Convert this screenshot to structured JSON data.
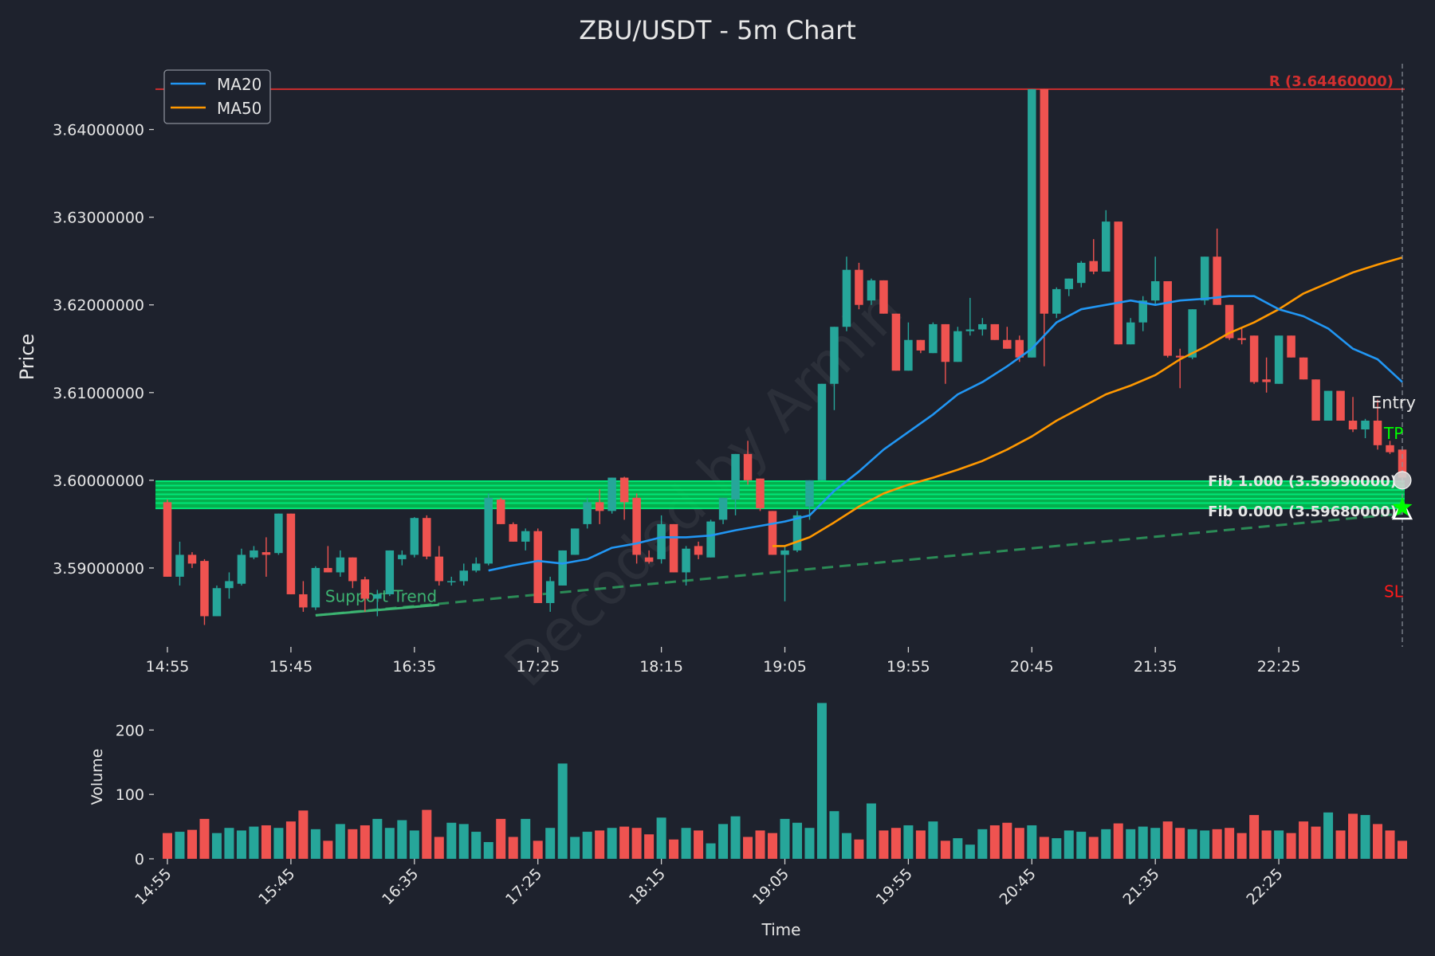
{
  "chart_data": {
    "type": "candlestick",
    "title": "ZBU/USDT - 5m Chart",
    "price_axis": {
      "label": "Price",
      "ylim": [
        3.581,
        3.6475
      ],
      "ticks": [
        3.59,
        3.6,
        3.61,
        3.62,
        3.63,
        3.64
      ],
      "tick_labels": [
        "3.59000000",
        "3.60000000",
        "3.61000000",
        "3.62000000",
        "3.63000000",
        "3.64000000"
      ]
    },
    "volume_axis": {
      "label": "Volume",
      "ylim": [
        0,
        245
      ],
      "ticks": [
        0,
        100,
        200
      ],
      "tick_labels": [
        "0",
        "100",
        "200"
      ]
    },
    "time_axis": {
      "label": "Time",
      "tick_labels": [
        "14:55",
        "15:45",
        "16:35",
        "17:25",
        "18:15",
        "19:05",
        "19:55",
        "20:45",
        "21:35",
        "22:25"
      ],
      "tick_index": [
        0,
        10,
        20,
        30,
        40,
        50,
        60,
        70,
        80,
        90
      ]
    },
    "legend": {
      "placement": "top-left",
      "entries": [
        {
          "name": "MA20",
          "color": "#2196f3"
        },
        {
          "name": "MA50",
          "color": "#ff9800"
        }
      ]
    },
    "colors": {
      "up": "#26a69a",
      "down": "#ef5350",
      "resistance": "#d32f2f",
      "fib": "#00c853",
      "support": "#2e9e5e",
      "entry": "#e6e6e6",
      "tp": "#00ff00",
      "sl": "#ff1a1a"
    },
    "candles": [
      {
        "t": "14:55",
        "o": 3.5975,
        "h": 3.5978,
        "l": 3.589,
        "c": 3.589,
        "v": 40
      },
      {
        "t": "15:00",
        "o": 3.589,
        "h": 3.593,
        "l": 3.588,
        "c": 3.5915,
        "v": 42
      },
      {
        "t": "15:05",
        "o": 3.5915,
        "h": 3.5918,
        "l": 3.59,
        "c": 3.5905,
        "v": 45
      },
      {
        "t": "15:10",
        "o": 3.5908,
        "h": 3.591,
        "l": 3.5835,
        "c": 3.5845,
        "v": 62
      },
      {
        "t": "15:15",
        "o": 3.5845,
        "h": 3.588,
        "l": 3.5845,
        "c": 3.5877,
        "v": 40
      },
      {
        "t": "15:20",
        "o": 3.5877,
        "h": 3.5895,
        "l": 3.5865,
        "c": 3.5885,
        "v": 48
      },
      {
        "t": "15:25",
        "o": 3.5882,
        "h": 3.5922,
        "l": 3.588,
        "c": 3.5915,
        "v": 44
      },
      {
        "t": "15:30",
        "o": 3.5912,
        "h": 3.5925,
        "l": 3.591,
        "c": 3.592,
        "v": 50
      },
      {
        "t": "15:35",
        "o": 3.5918,
        "h": 3.5935,
        "l": 3.589,
        "c": 3.5915,
        "v": 52
      },
      {
        "t": "15:40",
        "o": 3.5917,
        "h": 3.5962,
        "l": 3.5915,
        "c": 3.5962,
        "v": 48
      },
      {
        "t": "15:45",
        "o": 3.5962,
        "h": 3.5962,
        "l": 3.587,
        "c": 3.587,
        "v": 58
      },
      {
        "t": "15:50",
        "o": 3.587,
        "h": 3.5885,
        "l": 3.585,
        "c": 3.5855,
        "v": 75
      },
      {
        "t": "15:55",
        "o": 3.5855,
        "h": 3.5902,
        "l": 3.5852,
        "c": 3.59,
        "v": 46
      },
      {
        "t": "16:00",
        "o": 3.59,
        "h": 3.5925,
        "l": 3.5895,
        "c": 3.5895,
        "v": 28
      },
      {
        "t": "16:05",
        "o": 3.5895,
        "h": 3.592,
        "l": 3.589,
        "c": 3.5912,
        "v": 54
      },
      {
        "t": "16:10",
        "o": 3.5912,
        "h": 3.5912,
        "l": 3.5877,
        "c": 3.5885,
        "v": 46
      },
      {
        "t": "16:15",
        "o": 3.5887,
        "h": 3.589,
        "l": 3.585,
        "c": 3.5865,
        "v": 52
      },
      {
        "t": "16:20",
        "o": 3.5865,
        "h": 3.5875,
        "l": 3.5845,
        "c": 3.587,
        "v": 62
      },
      {
        "t": "16:25",
        "o": 3.587,
        "h": 3.592,
        "l": 3.5868,
        "c": 3.592,
        "v": 48
      },
      {
        "t": "16:30",
        "o": 3.591,
        "h": 3.592,
        "l": 3.5903,
        "c": 3.5915,
        "v": 60
      },
      {
        "t": "16:35",
        "o": 3.5915,
        "h": 3.5958,
        "l": 3.5912,
        "c": 3.5957,
        "v": 44
      },
      {
        "t": "16:40",
        "o": 3.5957,
        "h": 3.596,
        "l": 3.591,
        "c": 3.5913,
        "v": 76
      },
      {
        "t": "16:45",
        "o": 3.5913,
        "h": 3.5925,
        "l": 3.588,
        "c": 3.5885,
        "v": 34
      },
      {
        "t": "16:50",
        "o": 3.5885,
        "h": 3.589,
        "l": 3.588,
        "c": 3.5885,
        "v": 56
      },
      {
        "t": "16:55",
        "o": 3.5885,
        "h": 3.5905,
        "l": 3.588,
        "c": 3.5897,
        "v": 54
      },
      {
        "t": "17:00",
        "o": 3.5897,
        "h": 3.5912,
        "l": 3.5895,
        "c": 3.5905,
        "v": 42
      },
      {
        "t": "17:05",
        "o": 3.5905,
        "h": 3.5985,
        "l": 3.5903,
        "c": 3.598,
        "v": 26
      },
      {
        "t": "17:10",
        "o": 3.5978,
        "h": 3.598,
        "l": 3.595,
        "c": 3.595,
        "v": 62
      },
      {
        "t": "17:15",
        "o": 3.595,
        "h": 3.5952,
        "l": 3.593,
        "c": 3.593,
        "v": 34
      },
      {
        "t": "17:20",
        "o": 3.593,
        "h": 3.5945,
        "l": 3.592,
        "c": 3.5942,
        "v": 62
      },
      {
        "t": "17:25",
        "o": 3.5942,
        "h": 3.5945,
        "l": 3.586,
        "c": 3.586,
        "v": 28
      },
      {
        "t": "17:30",
        "o": 3.586,
        "h": 3.589,
        "l": 3.585,
        "c": 3.5885,
        "v": 48
      },
      {
        "t": "17:35",
        "o": 3.588,
        "h": 3.592,
        "l": 3.588,
        "c": 3.592,
        "v": 148
      },
      {
        "t": "17:40",
        "o": 3.5915,
        "h": 3.5945,
        "l": 3.5915,
        "c": 3.5945,
        "v": 34
      },
      {
        "t": "17:45",
        "o": 3.595,
        "h": 3.598,
        "l": 3.5945,
        "c": 3.5975,
        "v": 42
      },
      {
        "t": "17:50",
        "o": 3.5975,
        "h": 3.599,
        "l": 3.595,
        "c": 3.5965,
        "v": 44
      },
      {
        "t": "17:55",
        "o": 3.5965,
        "h": 3.6003,
        "l": 3.5962,
        "c": 3.6003,
        "v": 48
      },
      {
        "t": "18:00",
        "o": 3.6003,
        "h": 3.6004,
        "l": 3.5955,
        "c": 3.5975,
        "v": 50
      },
      {
        "t": "18:05",
        "o": 3.598,
        "h": 3.5985,
        "l": 3.5905,
        "c": 3.5915,
        "v": 48
      },
      {
        "t": "18:10",
        "o": 3.5912,
        "h": 3.592,
        "l": 3.5905,
        "c": 3.5907,
        "v": 38
      },
      {
        "t": "18:15",
        "o": 3.591,
        "h": 3.596,
        "l": 3.5905,
        "c": 3.595,
        "v": 64
      },
      {
        "t": "18:20",
        "o": 3.595,
        "h": 3.595,
        "l": 3.5895,
        "c": 3.5895,
        "v": 30
      },
      {
        "t": "18:25",
        "o": 3.5895,
        "h": 3.5925,
        "l": 3.588,
        "c": 3.5922,
        "v": 48
      },
      {
        "t": "18:30",
        "o": 3.5925,
        "h": 3.593,
        "l": 3.591,
        "c": 3.5915,
        "v": 44
      },
      {
        "t": "18:35",
        "o": 3.5912,
        "h": 3.5955,
        "l": 3.5912,
        "c": 3.5953,
        "v": 24
      },
      {
        "t": "18:40",
        "o": 3.5955,
        "h": 3.598,
        "l": 3.595,
        "c": 3.598,
        "v": 54
      },
      {
        "t": "18:45",
        "o": 3.5978,
        "h": 3.603,
        "l": 3.596,
        "c": 3.603,
        "v": 66
      },
      {
        "t": "18:50",
        "o": 3.603,
        "h": 3.6045,
        "l": 3.5995,
        "c": 3.6,
        "v": 34
      },
      {
        "t": "18:55",
        "o": 3.6002,
        "h": 3.6002,
        "l": 3.5965,
        "c": 3.5968,
        "v": 44
      },
      {
        "t": "19:00",
        "o": 3.5965,
        "h": 3.5965,
        "l": 3.5915,
        "c": 3.5915,
        "v": 40
      },
      {
        "t": "19:05",
        "o": 3.5915,
        "h": 3.5925,
        "l": 3.5862,
        "c": 3.592,
        "v": 62
      },
      {
        "t": "19:10",
        "o": 3.592,
        "h": 3.5965,
        "l": 3.5918,
        "c": 3.596,
        "v": 56
      },
      {
        "t": "19:15",
        "o": 3.597,
        "h": 3.6,
        "l": 3.5955,
        "c": 3.6,
        "v": 48
      },
      {
        "t": "19:20",
        "o": 3.6,
        "h": 3.611,
        "l": 3.6,
        "c": 3.611,
        "v": 242
      },
      {
        "t": "19:25",
        "o": 3.611,
        "h": 3.6175,
        "l": 3.608,
        "c": 3.6175,
        "v": 74
      },
      {
        "t": "19:30",
        "o": 3.6175,
        "h": 3.6255,
        "l": 3.617,
        "c": 3.624,
        "v": 40
      },
      {
        "t": "19:35",
        "o": 3.624,
        "h": 3.6248,
        "l": 3.6195,
        "c": 3.62,
        "v": 30
      },
      {
        "t": "19:40",
        "o": 3.6205,
        "h": 3.623,
        "l": 3.62,
        "c": 3.6228,
        "v": 86
      },
      {
        "t": "19:45",
        "o": 3.6228,
        "h": 3.6228,
        "l": 3.619,
        "c": 3.619,
        "v": 44
      },
      {
        "t": "19:50",
        "o": 3.619,
        "h": 3.619,
        "l": 3.6125,
        "c": 3.6125,
        "v": 48
      },
      {
        "t": "19:55",
        "o": 3.6125,
        "h": 3.618,
        "l": 3.6125,
        "c": 3.616,
        "v": 52
      },
      {
        "t": "20:00",
        "o": 3.616,
        "h": 3.616,
        "l": 3.6145,
        "c": 3.6148,
        "v": 44
      },
      {
        "t": "20:05",
        "o": 3.6145,
        "h": 3.618,
        "l": 3.6145,
        "c": 3.6178,
        "v": 58
      },
      {
        "t": "20:10",
        "o": 3.6178,
        "h": 3.6178,
        "l": 3.611,
        "c": 3.6135,
        "v": 28
      },
      {
        "t": "20:15",
        "o": 3.6135,
        "h": 3.6175,
        "l": 3.6135,
        "c": 3.617,
        "v": 32
      },
      {
        "t": "20:20",
        "o": 3.617,
        "h": 3.6208,
        "l": 3.6165,
        "c": 3.6172,
        "v": 22
      },
      {
        "t": "20:25",
        "o": 3.6172,
        "h": 3.6185,
        "l": 3.6165,
        "c": 3.6178,
        "v": 46
      },
      {
        "t": "20:30",
        "o": 3.6178,
        "h": 3.6178,
        "l": 3.616,
        "c": 3.616,
        "v": 52
      },
      {
        "t": "20:35",
        "o": 3.616,
        "h": 3.6175,
        "l": 3.615,
        "c": 3.615,
        "v": 56
      },
      {
        "t": "20:40",
        "o": 3.616,
        "h": 3.6165,
        "l": 3.6135,
        "c": 3.614,
        "v": 48
      },
      {
        "t": "20:45",
        "o": 3.614,
        "h": 3.6446,
        "l": 3.614,
        "c": 3.6446,
        "v": 52
      },
      {
        "t": "20:50",
        "o": 3.6446,
        "h": 3.6446,
        "l": 3.613,
        "c": 3.619,
        "v": 34
      },
      {
        "t": "20:55",
        "o": 3.619,
        "h": 3.622,
        "l": 3.6185,
        "c": 3.6218,
        "v": 32
      },
      {
        "t": "21:00",
        "o": 3.6218,
        "h": 3.623,
        "l": 3.621,
        "c": 3.623,
        "v": 44
      },
      {
        "t": "21:05",
        "o": 3.6225,
        "h": 3.625,
        "l": 3.622,
        "c": 3.6248,
        "v": 42
      },
      {
        "t": "21:10",
        "o": 3.625,
        "h": 3.6275,
        "l": 3.6235,
        "c": 3.6238,
        "v": 34
      },
      {
        "t": "21:15",
        "o": 3.6238,
        "h": 3.6308,
        "l": 3.6238,
        "c": 3.6295,
        "v": 46
      },
      {
        "t": "21:20",
        "o": 3.6295,
        "h": 3.6295,
        "l": 3.6155,
        "c": 3.6155,
        "v": 55
      },
      {
        "t": "21:25",
        "o": 3.6155,
        "h": 3.6185,
        "l": 3.6155,
        "c": 3.618,
        "v": 46
      },
      {
        "t": "21:30",
        "o": 3.618,
        "h": 3.621,
        "l": 3.617,
        "c": 3.6205,
        "v": 50
      },
      {
        "t": "21:35",
        "o": 3.6205,
        "h": 3.6255,
        "l": 3.62,
        "c": 3.6227,
        "v": 48
      },
      {
        "t": "21:40",
        "o": 3.6227,
        "h": 3.6227,
        "l": 3.614,
        "c": 3.6142,
        "v": 58
      },
      {
        "t": "21:45",
        "o": 3.6142,
        "h": 3.615,
        "l": 3.6105,
        "c": 3.614,
        "v": 48
      },
      {
        "t": "21:50",
        "o": 3.614,
        "h": 3.6195,
        "l": 3.6138,
        "c": 3.6195,
        "v": 46
      },
      {
        "t": "21:55",
        "o": 3.6205,
        "h": 3.6255,
        "l": 3.62,
        "c": 3.6255,
        "v": 44
      },
      {
        "t": "22:00",
        "o": 3.6255,
        "h": 3.6287,
        "l": 3.62,
        "c": 3.62,
        "v": 46
      },
      {
        "t": "22:05",
        "o": 3.62,
        "h": 3.62,
        "l": 3.616,
        "c": 3.6162,
        "v": 48
      },
      {
        "t": "22:10",
        "o": 3.6162,
        "h": 3.6175,
        "l": 3.6155,
        "c": 3.616,
        "v": 40
      },
      {
        "t": "22:15",
        "o": 3.6165,
        "h": 3.6165,
        "l": 3.611,
        "c": 3.6112,
        "v": 68
      },
      {
        "t": "22:20",
        "o": 3.6115,
        "h": 3.614,
        "l": 3.61,
        "c": 3.6112,
        "v": 44
      },
      {
        "t": "22:25",
        "o": 3.611,
        "h": 3.6165,
        "l": 3.611,
        "c": 3.6165,
        "v": 44
      },
      {
        "t": "22:30",
        "o": 3.6165,
        "h": 3.6165,
        "l": 3.614,
        "c": 3.614,
        "v": 40
      },
      {
        "t": "22:35",
        "o": 3.614,
        "h": 3.614,
        "l": 3.6115,
        "c": 3.6115,
        "v": 58
      },
      {
        "t": "22:40",
        "o": 3.6115,
        "h": 3.6115,
        "l": 3.6068,
        "c": 3.6068,
        "v": 50
      },
      {
        "t": "22:45",
        "o": 3.6068,
        "h": 3.6102,
        "l": 3.6068,
        "c": 3.6102,
        "v": 72
      },
      {
        "t": "22:50",
        "o": 3.6102,
        "h": 3.6102,
        "l": 3.6068,
        "c": 3.6068,
        "v": 44
      },
      {
        "t": "22:55",
        "o": 3.6068,
        "h": 3.6095,
        "l": 3.6055,
        "c": 3.6058,
        "v": 70
      },
      {
        "t": "23:00",
        "o": 3.6058,
        "h": 3.607,
        "l": 3.6048,
        "c": 3.6068,
        "v": 68
      },
      {
        "t": "23:05",
        "o": 3.6068,
        "h": 3.6092,
        "l": 3.6035,
        "c": 3.604,
        "v": 54
      },
      {
        "t": "23:10",
        "o": 3.604,
        "h": 3.6045,
        "l": 3.603,
        "c": 3.6032,
        "v": 44
      },
      {
        "t": "23:15",
        "o": 3.6035,
        "h": 3.6035,
        "l": 3.6003,
        "c": 3.6003,
        "v": 28
      }
    ],
    "ma20": [
      [
        26,
        3.5897
      ],
      [
        28,
        3.5903
      ],
      [
        30,
        3.5908
      ],
      [
        32,
        3.5905
      ],
      [
        34,
        3.591
      ],
      [
        36,
        3.5923
      ],
      [
        38,
        3.5928
      ],
      [
        40,
        3.5935
      ],
      [
        42,
        3.5935
      ],
      [
        44,
        3.5937
      ],
      [
        46,
        3.5943
      ],
      [
        48,
        3.5948
      ],
      [
        50,
        3.5953
      ],
      [
        52,
        3.596
      ],
      [
        54,
        3.5988
      ],
      [
        56,
        3.601
      ],
      [
        58,
        3.6035
      ],
      [
        60,
        3.6055
      ],
      [
        62,
        3.6075
      ],
      [
        64,
        3.6098
      ],
      [
        66,
        3.6112
      ],
      [
        68,
        3.613
      ],
      [
        70,
        3.615
      ],
      [
        72,
        3.618
      ],
      [
        74,
        3.6195
      ],
      [
        76,
        3.62
      ],
      [
        78,
        3.6205
      ],
      [
        80,
        3.62
      ],
      [
        82,
        3.6205
      ],
      [
        84,
        3.6207
      ],
      [
        86,
        3.621
      ],
      [
        88,
        3.621
      ],
      [
        90,
        3.6195
      ],
      [
        92,
        3.6187
      ],
      [
        94,
        3.6173
      ],
      [
        96,
        3.615
      ],
      [
        98,
        3.6138
      ],
      [
        100,
        3.6112
      ]
    ],
    "ma50": [
      [
        49,
        3.5925
      ],
      [
        50,
        3.5925
      ],
      [
        52,
        3.5935
      ],
      [
        54,
        3.5952
      ],
      [
        56,
        3.597
      ],
      [
        58,
        3.5985
      ],
      [
        60,
        3.5995
      ],
      [
        62,
        3.6003
      ],
      [
        64,
        3.6012
      ],
      [
        66,
        3.6022
      ],
      [
        68,
        3.6035
      ],
      [
        70,
        3.605
      ],
      [
        72,
        3.6068
      ],
      [
        74,
        3.6083
      ],
      [
        76,
        3.6098
      ],
      [
        78,
        3.6108
      ],
      [
        80,
        3.612
      ],
      [
        82,
        3.6138
      ],
      [
        84,
        3.6152
      ],
      [
        86,
        3.6168
      ],
      [
        88,
        3.618
      ],
      [
        90,
        3.6195
      ],
      [
        92,
        3.6213
      ],
      [
        94,
        3.6225
      ],
      [
        96,
        3.6237
      ],
      [
        98,
        3.6246
      ],
      [
        100,
        3.6254
      ]
    ],
    "resistance": {
      "value": 3.6446,
      "label": "R (3.64460000)"
    },
    "fib_levels": [
      {
        "value": 3.5999,
        "label": "Fib 1.000 (3.59990000)"
      },
      {
        "value": 3.5994
      },
      {
        "value": 3.5989
      },
      {
        "value": 3.5984
      },
      {
        "value": 3.5979
      },
      {
        "value": 3.5974
      },
      {
        "value": 3.5968,
        "label": "Fib 0.000 (3.59680000)"
      }
    ],
    "support_trend": {
      "label": "Support Trend",
      "from": [
        12,
        3.5846
      ],
      "solid_to": [
        22,
        3.5858
      ],
      "to": [
        100,
        3.5962
      ]
    },
    "markers": {
      "index": 100,
      "entry": {
        "label": "Entry",
        "value": 3.6
      },
      "tp": {
        "label": "TP",
        "value": 3.5969
      },
      "sl": {
        "label": "SL",
        "value": 3.5969
      }
    },
    "text_positions_price": {
      "entry_label": 3.6082,
      "tp_label": 3.6047,
      "sl_label": 3.5867
    },
    "watermark": "Decoded by Armin"
  }
}
